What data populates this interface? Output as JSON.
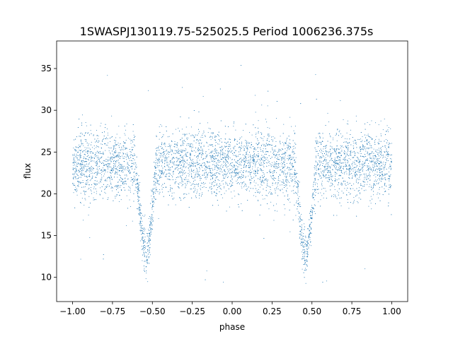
{
  "chart_data": {
    "type": "scatter",
    "title": "1SWASPJ130119.75-525025.5 Period 1006236.375s",
    "xlabel": "phase",
    "ylabel": "flux",
    "xlim": [
      -1.1,
      1.1
    ],
    "ylim": [
      7.1,
      38.3
    ],
    "x_ticks": [
      -1.0,
      -0.75,
      -0.5,
      -0.25,
      0.0,
      0.25,
      0.5,
      0.75,
      1.0
    ],
    "x_tick_labels": [
      "−1.00",
      "−0.75",
      "−0.50",
      "−0.25",
      "0.00",
      "0.25",
      "0.50",
      "0.75",
      "1.00"
    ],
    "y_ticks": [
      10,
      15,
      20,
      25,
      30,
      35
    ],
    "y_tick_labels": [
      "10",
      "15",
      "20",
      "25",
      "30",
      "35"
    ],
    "grid": false,
    "marker_color": "#1f77b4",
    "series": [
      {
        "x_range": [
          -1.0,
          1.0
        ],
        "baseline_flux": 23.5,
        "scatter_sd": 2.0,
        "eclipses": [
          {
            "phase_center": -0.54,
            "min_flux": 12.5,
            "half_width": 0.065
          },
          {
            "phase_center": 0.46,
            "min_flux": 12.5,
            "half_width": 0.065
          }
        ]
      }
    ]
  }
}
